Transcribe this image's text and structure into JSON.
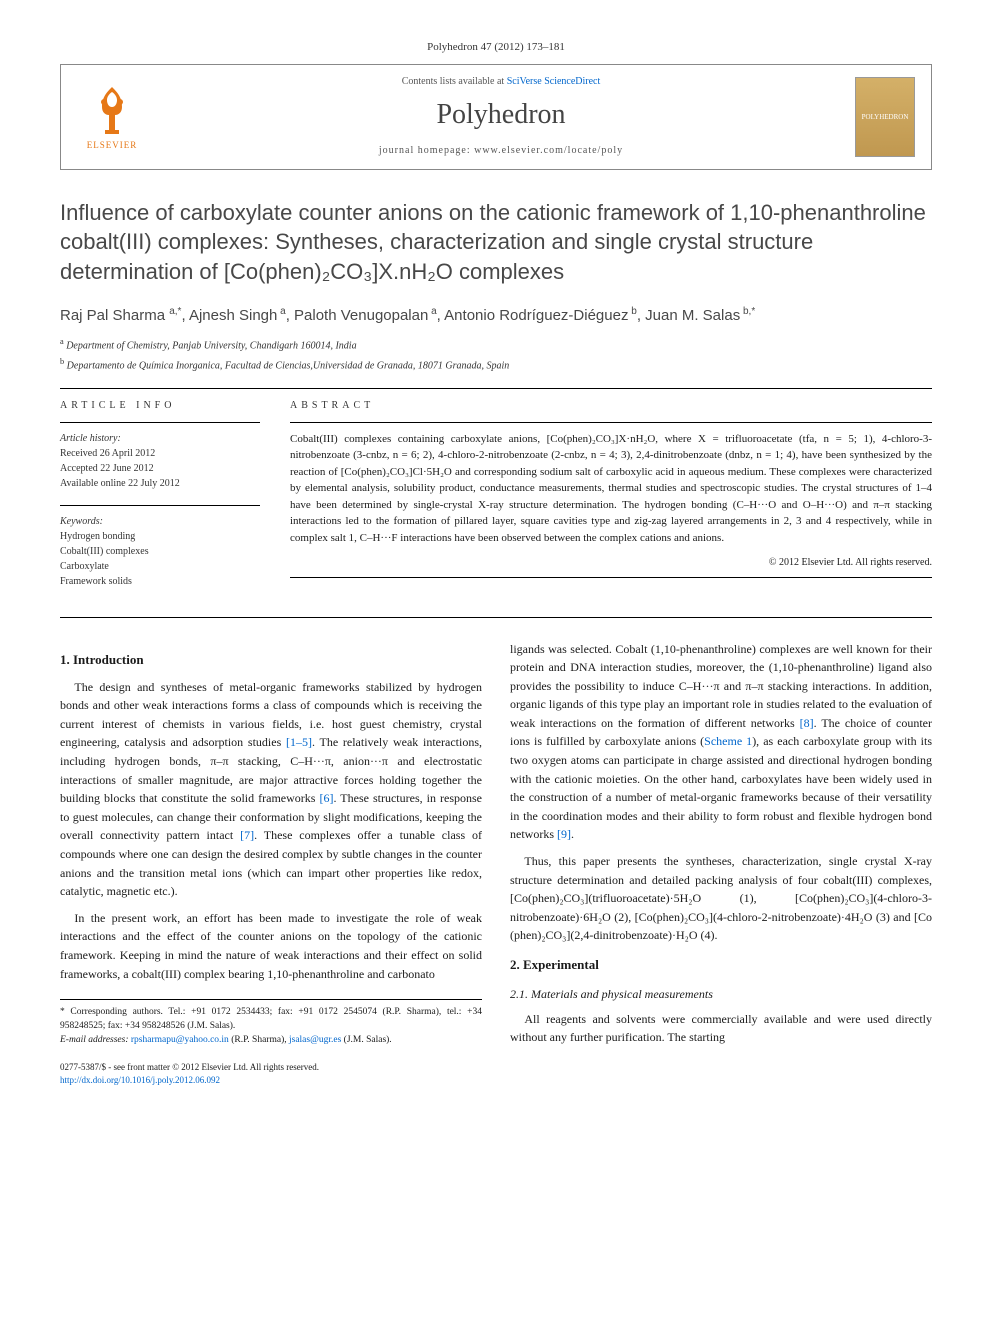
{
  "journal_ref": "Polyhedron 47 (2012) 173–181",
  "header": {
    "contents_prefix": "Contents lists available at ",
    "contents_link": "SciVerse ScienceDirect",
    "journal_name": "Polyhedron",
    "homepage_prefix": "journal homepage: ",
    "homepage_url": "www.elsevier.com/locate/poly",
    "elsevier_label": "ELSEVIER",
    "cover_label": "POLYHEDRON"
  },
  "title": "Influence of carboxylate counter anions on the cationic framework of 1,10-phenanthroline cobalt(III) complexes: Syntheses, characterization and single crystal structure determination of [Co(phen)₂CO₃]X.nH₂O complexes",
  "authors_html": "Raj Pal Sharma <sup>a,*</sup>, Ajnesh Singh<sup> a</sup>, Paloth Venugopalan<sup> a</sup>, Antonio Rodríguez-Diéguez<sup> b</sup>, Juan M. Salas<sup> b,*</sup>",
  "affiliations": [
    {
      "sup": "a",
      "text": "Department of Chemistry, Panjab University, Chandigarh 160014, India"
    },
    {
      "sup": "b",
      "text": "Departamento de Química Inorganica, Facultad de Ciencias,Universidad de Granada, 18071 Granada, Spain"
    }
  ],
  "info": {
    "label": "ARTICLE INFO",
    "history_hdr": "Article history:",
    "history": [
      "Received 26 April 2012",
      "Accepted 22 June 2012",
      "Available online 22 July 2012"
    ],
    "keywords_hdr": "Keywords:",
    "keywords": [
      "Hydrogen bonding",
      "Cobalt(III) complexes",
      "Carboxylate",
      "Framework solids"
    ]
  },
  "abstract": {
    "label": "ABSTRACT",
    "text": "Cobalt(III) complexes containing carboxylate anions, [Co(phen)₂CO₃]X·nH₂O, where X = trifluoroacetate (tfa, n = 5; 1), 4-chloro-3-nitrobenzoate (3-cnbz, n = 6; 2), 4-chloro-2-nitrobenzoate (2-cnbz, n = 4; 3), 2,4-dinitrobenzoate (dnbz, n = 1; 4), have been synthesized by the reaction of [Co(phen)₂CO₃]Cl·5H₂O and corresponding sodium salt of carboxylic acid in aqueous medium. These complexes were characterized by elemental analysis, solubility product, conductance measurements, thermal studies and spectroscopic studies. The crystal structures of 1–4 have been determined by single-crystal X-ray structure determination. The hydrogen bonding (C–H···O and O–H···O) and π–π stacking interactions led to the formation of pillared layer, square cavities type and zig-zag layered arrangements in 2, 3 and 4 respectively, while in complex salt 1, C–H···F interactions have been observed between the complex cations and anions.",
    "copyright": "© 2012 Elsevier Ltd. All rights reserved."
  },
  "body": {
    "intro_hdr": "1. Introduction",
    "intro_p1": "The design and syntheses of metal-organic frameworks stabilized by hydrogen bonds and other weak interactions forms a class of compounds which is receiving the current interest of chemists in various fields, i.e. host guest chemistry, crystal engineering, catalysis and adsorption studies [1–5]. The relatively weak interactions, including hydrogen bonds, π–π stacking, C–H···π, anion···π and electrostatic interactions of smaller magnitude, are major attractive forces holding together the building blocks that constitute the solid frameworks [6]. These structures, in response to guest molecules, can change their conformation by slight modifications, keeping the overall connectivity pattern intact [7]. These complexes offer a tunable class of compounds where one can design the desired complex by subtle changes in the counter anions and the transition metal ions (which can impart other properties like redox, catalytic, magnetic etc.).",
    "intro_p2": "In the present work, an effort has been made to investigate the role of weak interactions and the effect of the counter anions on the topology of the cationic framework. Keeping in mind the nature of weak interactions and their effect on solid frameworks, a cobalt(III) complex bearing 1,10-phenanthroline and carbonato",
    "col2_p1": "ligands was selected. Cobalt (1,10-phenanthroline) complexes are well known for their protein and DNA interaction studies, moreover, the (1,10-phenanthroline) ligand also provides the possibility to induce C–H···π and π–π stacking interactions. In addition, organic ligands of this type play an important role in studies related to the evaluation of weak interactions on the formation of different networks [8]. The choice of counter ions is fulfilled by carboxylate anions (Scheme 1), as each carboxylate group with its two oxygen atoms can participate in charge assisted and directional hydrogen bonding with the cationic moieties. On the other hand, carboxylates have been widely used in the construction of a number of metal-organic frameworks because of their versatility in the coordination modes and their ability to form robust and flexible hydrogen bond networks [9].",
    "col2_p2": "Thus, this paper presents the syntheses, characterization, single crystal X-ray structure determination and detailed packing analysis of four cobalt(III) complexes, [Co(phen)₂CO₃](trifluoroacetate)·5H₂O (1), [Co(phen)₂CO₃](4-chloro-3-nitrobenzoate)·6H₂O (2), [Co(phen)₂CO₃](4-chloro-2-nitrobenzoate)·4H₂O (3) and [Co (phen)₂CO₃](2,4-dinitrobenzoate)·H₂O (4).",
    "exp_hdr": "2. Experimental",
    "exp_sub": "2.1. Materials and physical measurements",
    "exp_p1": "All reagents and solvents were commercially available and were used directly without any further purification. The starting"
  },
  "footnotes": {
    "corr": "* Corresponding authors. Tel.: +91 0172 2534433; fax: +91 0172 2545074 (R.P. Sharma), tel.: +34 958248525; fax: +34 958248526 (J.M. Salas).",
    "email_label": "E-mail addresses:",
    "email1": "rpsharmapu@yahoo.co.in",
    "email1_who": " (R.P. Sharma), ",
    "email2": "jsalas@ugr.es",
    "email2_who": " (J.M. Salas)."
  },
  "bottom": {
    "line1": "0277-5387/$ - see front matter © 2012 Elsevier Ltd. All rights reserved.",
    "doi": "http://dx.doi.org/10.1016/j.poly.2012.06.092"
  },
  "colors": {
    "link": "#0066cc",
    "elsevier_orange": "#e67817",
    "title_gray": "#484848"
  }
}
